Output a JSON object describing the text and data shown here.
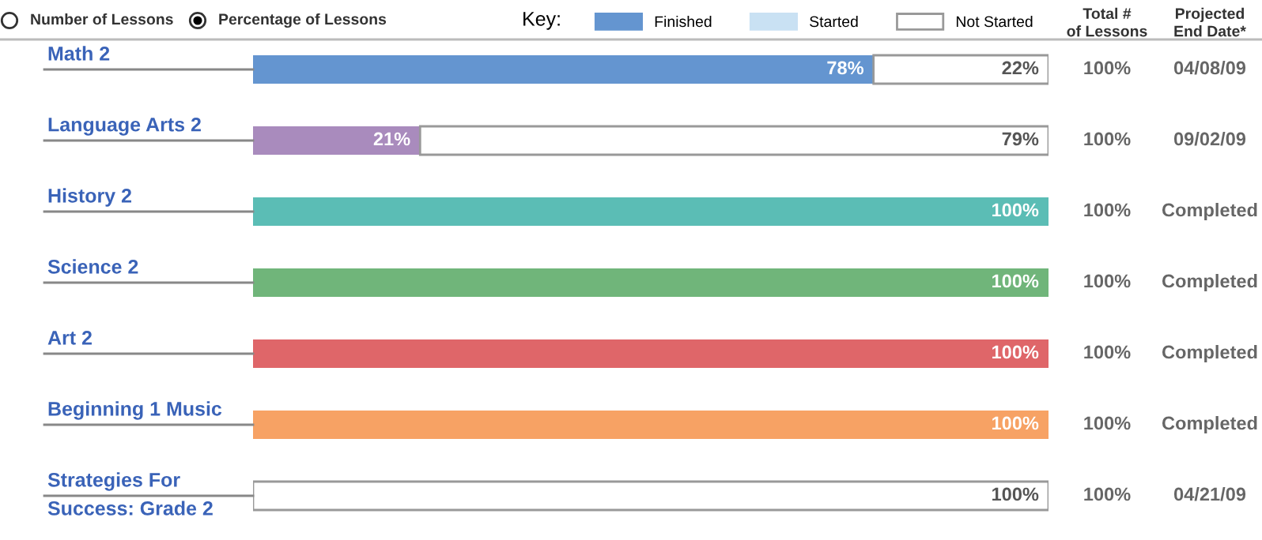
{
  "chart_data": {
    "type": "bar",
    "orientation": "horizontal",
    "stacked": true,
    "categories": [
      "Math 2",
      "Language Arts 2",
      "History 2",
      "Science 2",
      "Art 2",
      "Beginning 1 Music",
      "Strategies For\nSuccess: Grade 2"
    ],
    "series": [
      {
        "name": "Finished",
        "color": "#6495d0",
        "colors": [
          "#6495d0",
          "#a98bbd",
          "#5bbdb5",
          "#70b57a",
          "#df6669",
          "#f7a264",
          "#6495d0"
        ],
        "values": [
          78,
          21,
          100,
          100,
          100,
          100,
          0
        ],
        "value_labels": [
          "78%",
          "21%",
          "100%",
          "100%",
          "100%",
          "100%",
          null
        ]
      },
      {
        "name": "Started",
        "color": "#c9e1f3",
        "values": [
          0,
          0,
          0,
          0,
          0,
          0,
          0
        ]
      },
      {
        "name": "Not Started",
        "color": "#ffffff",
        "values": [
          22,
          79,
          0,
          0,
          0,
          0,
          100
        ],
        "value_labels": [
          "22%",
          "79%",
          null,
          null,
          null,
          null,
          "100%"
        ]
      }
    ],
    "xlim": [
      0,
      100
    ],
    "legend": "top",
    "legend_title": "Key:",
    "annotations": [
      "Number of Lessons",
      "Percentage of Lessons",
      "Total #\nof Lessons",
      "Projected\nEnd Date*",
      "100%",
      "04/08/09",
      "100%",
      "09/02/09",
      "100%",
      "Completed",
      "100%",
      "Completed",
      "100%",
      "Completed",
      "100%",
      "Completed",
      "100%",
      "04/21/09"
    ]
  }
}
